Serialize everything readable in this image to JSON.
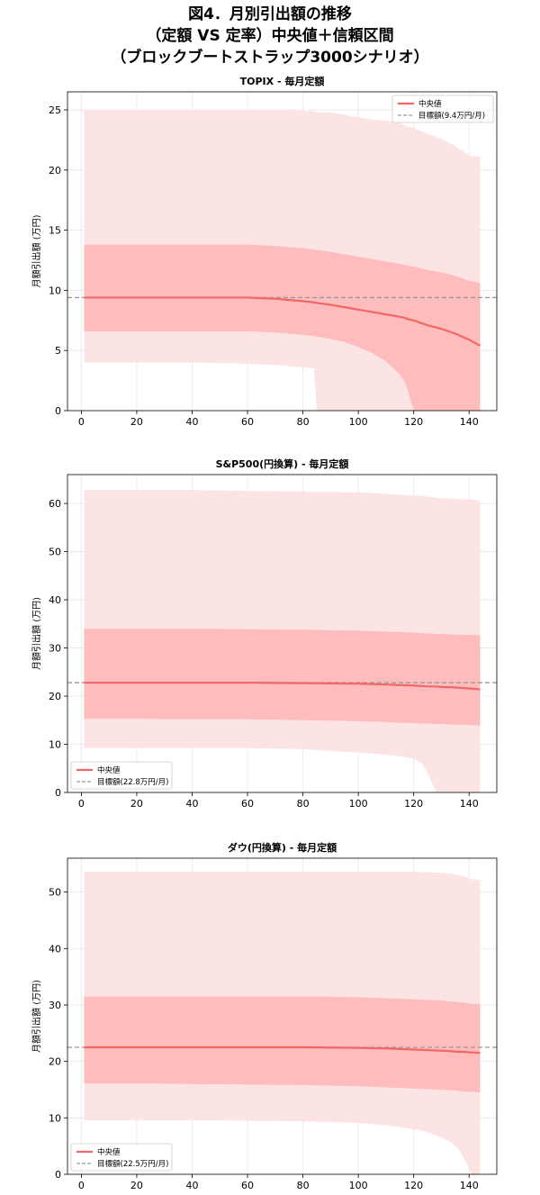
{
  "figure": {
    "title_lines": [
      "図4．月別引出額の推移",
      "（定額 VS 定率）中央値＋信頼区間",
      "（ブロックブートストラップ3000シナリオ）"
    ]
  },
  "colors": {
    "outer_band": "#fde4e4",
    "inner_band": "#ffbcbc",
    "median": "#f26666",
    "target": "#999999"
  },
  "chart_data": [
    {
      "type": "area",
      "title": "TOPIX - 毎月定額",
      "ylabel": "月額引出額 (万円)",
      "xlim": [
        -5,
        150
      ],
      "ylim": [
        0,
        26.5
      ],
      "xticks": [
        0,
        20,
        40,
        60,
        80,
        100,
        120,
        140
      ],
      "yticks": [
        0,
        5,
        10,
        15,
        20,
        25
      ],
      "grid": true,
      "legend_position": "top-right",
      "legend": [
        "中央値",
        "目標額(9.4万円/月)"
      ],
      "target": 9.4,
      "x": [
        1,
        10,
        20,
        30,
        40,
        50,
        60,
        65,
        70,
        75,
        80,
        84,
        85,
        90,
        95,
        100,
        105,
        110,
        115,
        117,
        118,
        119,
        120,
        125,
        130,
        135,
        140,
        144
      ],
      "series": [
        {
          "role": "outer_upper",
          "values": [
            25,
            25,
            25,
            25,
            25,
            25,
            25,
            25,
            25,
            25,
            24.9,
            24.9,
            24.8,
            24.8,
            24.6,
            24.4,
            24.2,
            24.1,
            23.9,
            23.7,
            23.6,
            23.6,
            23.5,
            23.0,
            22.6,
            22.0,
            21.2,
            21.1
          ]
        },
        {
          "role": "inner_upper",
          "values": [
            13.8,
            13.8,
            13.8,
            13.8,
            13.8,
            13.8,
            13.8,
            13.75,
            13.7,
            13.6,
            13.5,
            13.4,
            13.35,
            13.2,
            13.0,
            12.8,
            12.6,
            12.4,
            12.2,
            12.1,
            12.05,
            12.0,
            12.0,
            11.7,
            11.5,
            11.2,
            10.8,
            10.6
          ]
        },
        {
          "role": "median",
          "values": [
            9.4,
            9.4,
            9.4,
            9.4,
            9.4,
            9.4,
            9.4,
            9.35,
            9.3,
            9.2,
            9.1,
            9.0,
            8.95,
            8.8,
            8.6,
            8.4,
            8.2,
            8.0,
            7.8,
            7.7,
            7.6,
            7.55,
            7.5,
            7.1,
            6.8,
            6.4,
            5.9,
            5.4
          ]
        },
        {
          "role": "inner_lower",
          "values": [
            6.6,
            6.6,
            6.6,
            6.6,
            6.6,
            6.6,
            6.6,
            6.55,
            6.5,
            6.4,
            6.3,
            6.2,
            6.15,
            5.95,
            5.7,
            5.3,
            4.8,
            4.1,
            3.0,
            2.3,
            1.6,
            0.8,
            0,
            0,
            0,
            0,
            0,
            0
          ]
        },
        {
          "role": "outer_lower",
          "values": [
            4.0,
            4.0,
            4.0,
            4.0,
            4.0,
            3.95,
            3.9,
            3.85,
            3.8,
            3.7,
            3.6,
            3.5,
            0,
            0,
            0,
            0,
            0,
            0,
            0,
            0,
            0,
            0,
            0,
            0,
            0,
            0,
            0,
            0
          ]
        }
      ]
    },
    {
      "type": "area",
      "title": "S&P500(円換算) - 毎月定額",
      "ylabel": "月額引出額 (万円)",
      "xlim": [
        -5,
        150
      ],
      "ylim": [
        0,
        66
      ],
      "xticks": [
        0,
        20,
        40,
        60,
        80,
        100,
        120,
        140
      ],
      "yticks": [
        0,
        10,
        20,
        30,
        40,
        50,
        60
      ],
      "grid": true,
      "legend_position": "bottom-left",
      "legend": [
        "中央値",
        "目標額(22.8万円/月)"
      ],
      "target": 22.8,
      "x": [
        1,
        20,
        40,
        60,
        80,
        100,
        110,
        115,
        120,
        123,
        125,
        127,
        128,
        130,
        135,
        140,
        144
      ],
      "series": [
        {
          "role": "outer_upper",
          "values": [
            62.8,
            62.8,
            62.8,
            62.6,
            62.5,
            62.3,
            62.0,
            61.8,
            61.7,
            61.6,
            61.4,
            61.3,
            61.2,
            61.1,
            61.0,
            60.8,
            60.7
          ]
        },
        {
          "role": "inner_upper",
          "values": [
            34.0,
            34.0,
            34.0,
            33.9,
            33.8,
            33.6,
            33.4,
            33.3,
            33.2,
            33.1,
            33.0,
            33.0,
            32.9,
            32.9,
            32.8,
            32.7,
            32.7
          ]
        },
        {
          "role": "median",
          "values": [
            22.8,
            22.8,
            22.8,
            22.8,
            22.7,
            22.6,
            22.4,
            22.3,
            22.2,
            22.1,
            22.0,
            22.0,
            22.0,
            21.9,
            21.8,
            21.6,
            21.4
          ]
        },
        {
          "role": "inner_lower",
          "values": [
            15.3,
            15.3,
            15.2,
            15.2,
            15.0,
            14.8,
            14.6,
            14.5,
            14.4,
            14.3,
            14.3,
            14.2,
            14.2,
            14.2,
            14.1,
            14.0,
            13.9
          ]
        },
        {
          "role": "outer_lower",
          "values": [
            9.2,
            9.2,
            9.2,
            9.2,
            9.0,
            8.3,
            7.8,
            7.5,
            7.0,
            6.0,
            4.0,
            1.5,
            0,
            0,
            0,
            0,
            0
          ]
        }
      ]
    },
    {
      "type": "area",
      "title": "ダウ(円換算) - 毎月定額",
      "ylabel": "月額引出額 (万円)",
      "xlim": [
        -5,
        150
      ],
      "ylim": [
        0,
        56
      ],
      "xticks": [
        0,
        20,
        40,
        60,
        80,
        100,
        120,
        140
      ],
      "yticks": [
        0,
        10,
        20,
        30,
        40,
        50
      ],
      "grid": true,
      "legend_position": "bottom-left",
      "legend": [
        "中央値",
        "目標額(22.5万円/月)"
      ],
      "target": 22.5,
      "x": [
        1,
        20,
        40,
        60,
        80,
        100,
        110,
        120,
        125,
        130,
        134,
        136,
        138,
        140,
        141,
        144
      ],
      "series": [
        {
          "role": "outer_upper",
          "values": [
            53.6,
            53.6,
            53.6,
            53.6,
            53.6,
            53.6,
            53.6,
            53.6,
            53.5,
            53.4,
            53.2,
            53.0,
            52.8,
            52.5,
            52.3,
            52.1
          ]
        },
        {
          "role": "inner_upper",
          "values": [
            31.5,
            31.5,
            31.5,
            31.5,
            31.5,
            31.4,
            31.2,
            31.0,
            30.9,
            30.8,
            30.6,
            30.5,
            30.4,
            30.3,
            30.2,
            30.2
          ]
        },
        {
          "role": "median",
          "values": [
            22.5,
            22.5,
            22.5,
            22.5,
            22.5,
            22.4,
            22.3,
            22.1,
            22.0,
            21.9,
            21.8,
            21.7,
            21.7,
            21.6,
            21.6,
            21.5
          ]
        },
        {
          "role": "inner_lower",
          "values": [
            16.1,
            16.1,
            16.0,
            15.9,
            15.8,
            15.6,
            15.4,
            15.2,
            15.1,
            15.0,
            14.9,
            14.8,
            14.7,
            14.6,
            14.6,
            14.5
          ]
        },
        {
          "role": "outer_lower",
          "values": [
            9.6,
            9.6,
            9.6,
            9.5,
            9.4,
            9.1,
            8.7,
            8.0,
            7.5,
            6.5,
            5.5,
            4.5,
            3.0,
            1.0,
            0,
            0
          ]
        }
      ]
    }
  ]
}
